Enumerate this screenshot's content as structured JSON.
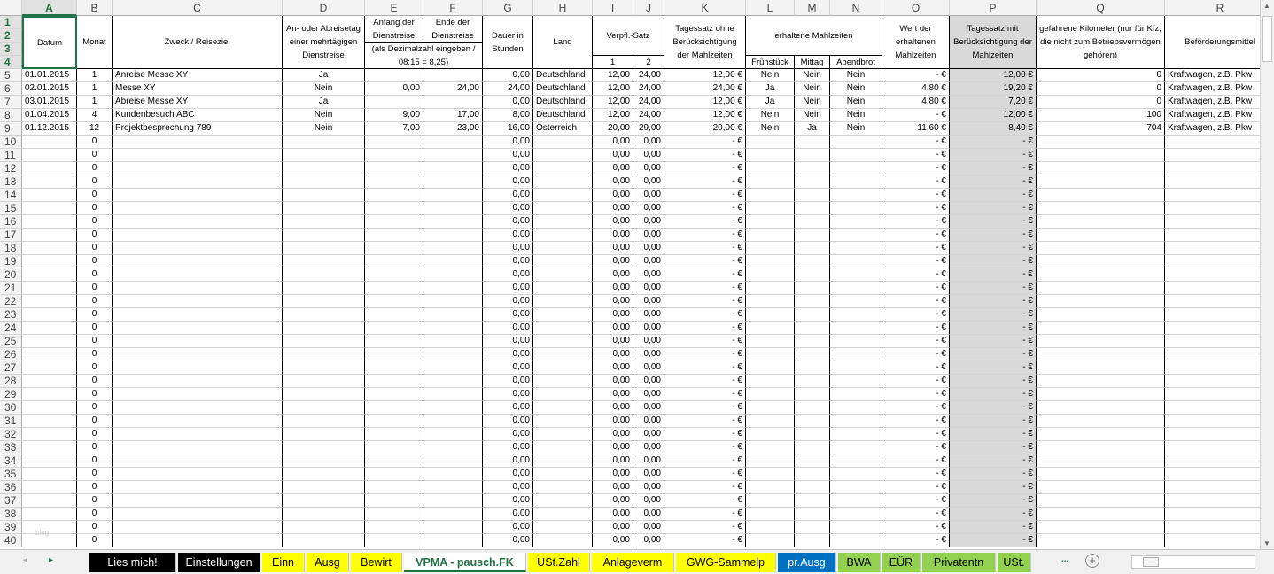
{
  "columns": [
    "A",
    "B",
    "C",
    "D",
    "E",
    "F",
    "G",
    "H",
    "I",
    "J",
    "K",
    "L",
    "M",
    "N",
    "O",
    "P",
    "Q",
    "R"
  ],
  "selected_column": "A",
  "header": {
    "datum": "Datum",
    "monat": "Monat",
    "zweck": "Zweck / Reiseziel",
    "anreise": "An- oder Abreisetag einer mehrtägigen Dienstreise",
    "anfang": "Anfang der Dienstreise",
    "ende": "Ende der Dienstreise",
    "dezimal_hint": "(als Dezimalzahl eingeben / 08:15 = 8,25)",
    "dauer": "Dauer in Stunden",
    "land": "Land",
    "verpfl": "Verpfl.-Satz",
    "verpfl_1": "1",
    "verpfl_2": "2",
    "tagessatz_ohne": "Tagessatz ohne Berücksichtigung der Mahlzeiten",
    "mahlzeiten": "erhaltene Mahlzeiten",
    "fruehstueck": "Frühstück",
    "mittag": "Mittag",
    "abendbrot": "Abendbrot",
    "wert": "Wert der erhaltenen Mahlzeiten",
    "tagessatz_mit": "Tagessatz mit Berücksichtigung der Mahlzeiten",
    "km": "gefahrene Kilometer (nur für Kfz, die nicht zum Betriebsvermögen gehören)",
    "befoerderung": "Beförderungsmittel"
  },
  "header_row_numbers": [
    "1",
    "2",
    "3",
    "4"
  ],
  "rows": [
    {
      "n": "5",
      "A": "01.01.2015",
      "B": "1",
      "C": "Anreise Messe XY",
      "D": "Ja",
      "E": "",
      "F": "",
      "G": "0,00",
      "H": "Deutschland",
      "I": "12,00",
      "J": "24,00",
      "K": "12,00 €",
      "L": "Nein",
      "M": "Nein",
      "N": "Nein",
      "O": "-   €",
      "P": "12,00 €",
      "Q": "0",
      "R": "Kraftwagen, z.B. Pkw"
    },
    {
      "n": "6",
      "A": "02.01.2015",
      "B": "1",
      "C": "Messe XY",
      "D": "Nein",
      "E": "0,00",
      "F": "24,00",
      "G": "24,00",
      "H": "Deutschland",
      "I": "12,00",
      "J": "24,00",
      "K": "24,00 €",
      "L": "Ja",
      "M": "Nein",
      "N": "Nein",
      "O": "4,80 €",
      "P": "19,20 €",
      "Q": "0",
      "R": "Kraftwagen, z.B. Pkw"
    },
    {
      "n": "7",
      "A": "03.01.2015",
      "B": "1",
      "C": "Abreise Messe XY",
      "D": "Ja",
      "E": "",
      "F": "",
      "G": "0,00",
      "H": "Deutschland",
      "I": "12,00",
      "J": "24,00",
      "K": "12,00 €",
      "L": "Ja",
      "M": "Nein",
      "N": "Nein",
      "O": "4,80 €",
      "P": "7,20 €",
      "Q": "0",
      "R": "Kraftwagen, z.B. Pkw"
    },
    {
      "n": "8",
      "A": "01.04.2015",
      "B": "4",
      "C": "Kundenbesuch ABC",
      "D": "Nein",
      "E": "9,00",
      "F": "17,00",
      "G": "8,00",
      "H": "Deutschland",
      "I": "12,00",
      "J": "24,00",
      "K": "12,00 €",
      "L": "Nein",
      "M": "Nein",
      "N": "Nein",
      "O": "-   €",
      "P": "12,00 €",
      "Q": "100",
      "R": "Kraftwagen, z.B. Pkw"
    },
    {
      "n": "9",
      "A": "01.12.2015",
      "B": "12",
      "C": "Projektbesprechung 789",
      "D": "Nein",
      "E": "7,00",
      "F": "23,00",
      "G": "16,00",
      "H": "Österreich",
      "I": "20,00",
      "J": "29,00",
      "K": "20,00 €",
      "L": "Nein",
      "M": "Ja",
      "N": "Nein",
      "O": "11,60 €",
      "P": "8,40 €",
      "Q": "704",
      "R": "Kraftwagen, z.B. Pkw"
    }
  ],
  "empty_rows": {
    "first": 10,
    "last": 40,
    "values": {
      "B": "0",
      "G": "0,00",
      "I": "0,00",
      "J": "0,00",
      "K": "-   €",
      "O": "-   €",
      "P": "-   €"
    }
  },
  "watermark": "blog",
  "tabs": [
    {
      "label": "Lies mich!",
      "bg": "#000000",
      "fg": "#ffffff"
    },
    {
      "label": "Einstellungen",
      "bg": "#000000",
      "fg": "#ffffff"
    },
    {
      "label": "Einn",
      "bg": "#ffff00",
      "fg": "#000000"
    },
    {
      "label": "Ausg",
      "bg": "#ffff00",
      "fg": "#000000"
    },
    {
      "label": "Bewirt",
      "bg": "#ffff00",
      "fg": "#000000"
    },
    {
      "label": "VPMA - pausch.FK",
      "bg": "#ffffff",
      "fg": "#217346",
      "active": true
    },
    {
      "label": "USt.Zahl",
      "bg": "#ffff00",
      "fg": "#000000"
    },
    {
      "label": "Anlageverm",
      "bg": "#ffff00",
      "fg": "#000000"
    },
    {
      "label": "GWG-Sammelp",
      "bg": "#ffff00",
      "fg": "#000000"
    },
    {
      "label": "pr.Ausg",
      "bg": "#0070c0",
      "fg": "#ffffff"
    },
    {
      "label": "BWA",
      "bg": "#92d050",
      "fg": "#000000"
    },
    {
      "label": "EÜR",
      "bg": "#92d050",
      "fg": "#000000"
    },
    {
      "label": "Privatentn",
      "bg": "#92d050",
      "fg": "#000000"
    },
    {
      "label": "USt.",
      "bg": "#92d050",
      "fg": "#000000"
    }
  ],
  "tab_more": "...",
  "colors": {
    "accent": "#217346",
    "highlight_column": "#d9d9d9"
  }
}
